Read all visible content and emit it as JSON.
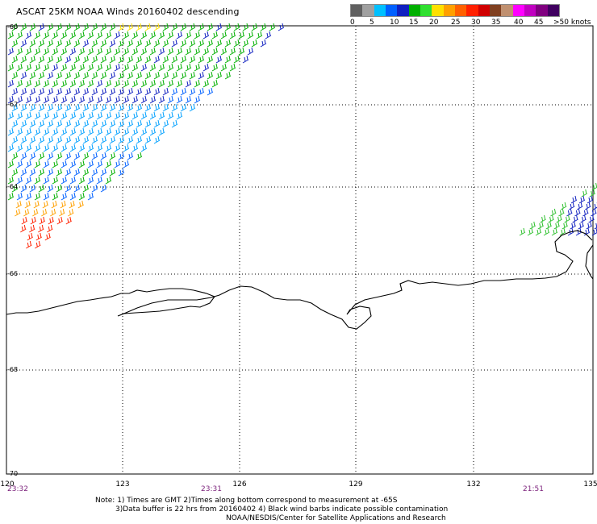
{
  "title": "ASCAT 25KM NOAA Winds 20160402 descending",
  "legend": {
    "colors": [
      "#606060",
      "#a0a0a0",
      "#00c0ff",
      "#0060ff",
      "#1020c0",
      "#00b000",
      "#30e030",
      "#ffe000",
      "#ffa000",
      "#ff6000",
      "#ff2000",
      "#d00000",
      "#804020",
      "#c09070",
      "#ff00ff",
      "#c000c0",
      "#800080",
      "#400060"
    ],
    "labels": [
      "0",
      "5",
      "10",
      "15",
      "20",
      "25",
      "30",
      "35",
      "40",
      "45",
      ">50 knots"
    ]
  },
  "axes": {
    "lat_labels": [
      "-60",
      "-62",
      "-64",
      "-66",
      "-68",
      "-70"
    ],
    "lon_labels": [
      "120",
      "123",
      "126",
      "129",
      "132",
      "135"
    ],
    "time_labels": [
      "23:32",
      "23:31",
      "21:51"
    ]
  },
  "notes": [
    "Note: 1) Times are GMT 2)Times along bottom correspond to measurement at -65S",
    "3)Data buffer is 22 hrs from 20160402 4) Black wind barbs indicate possible contamination",
    "NOAA/NESDIS/Center for Satellite Applications and Research"
  ]
}
